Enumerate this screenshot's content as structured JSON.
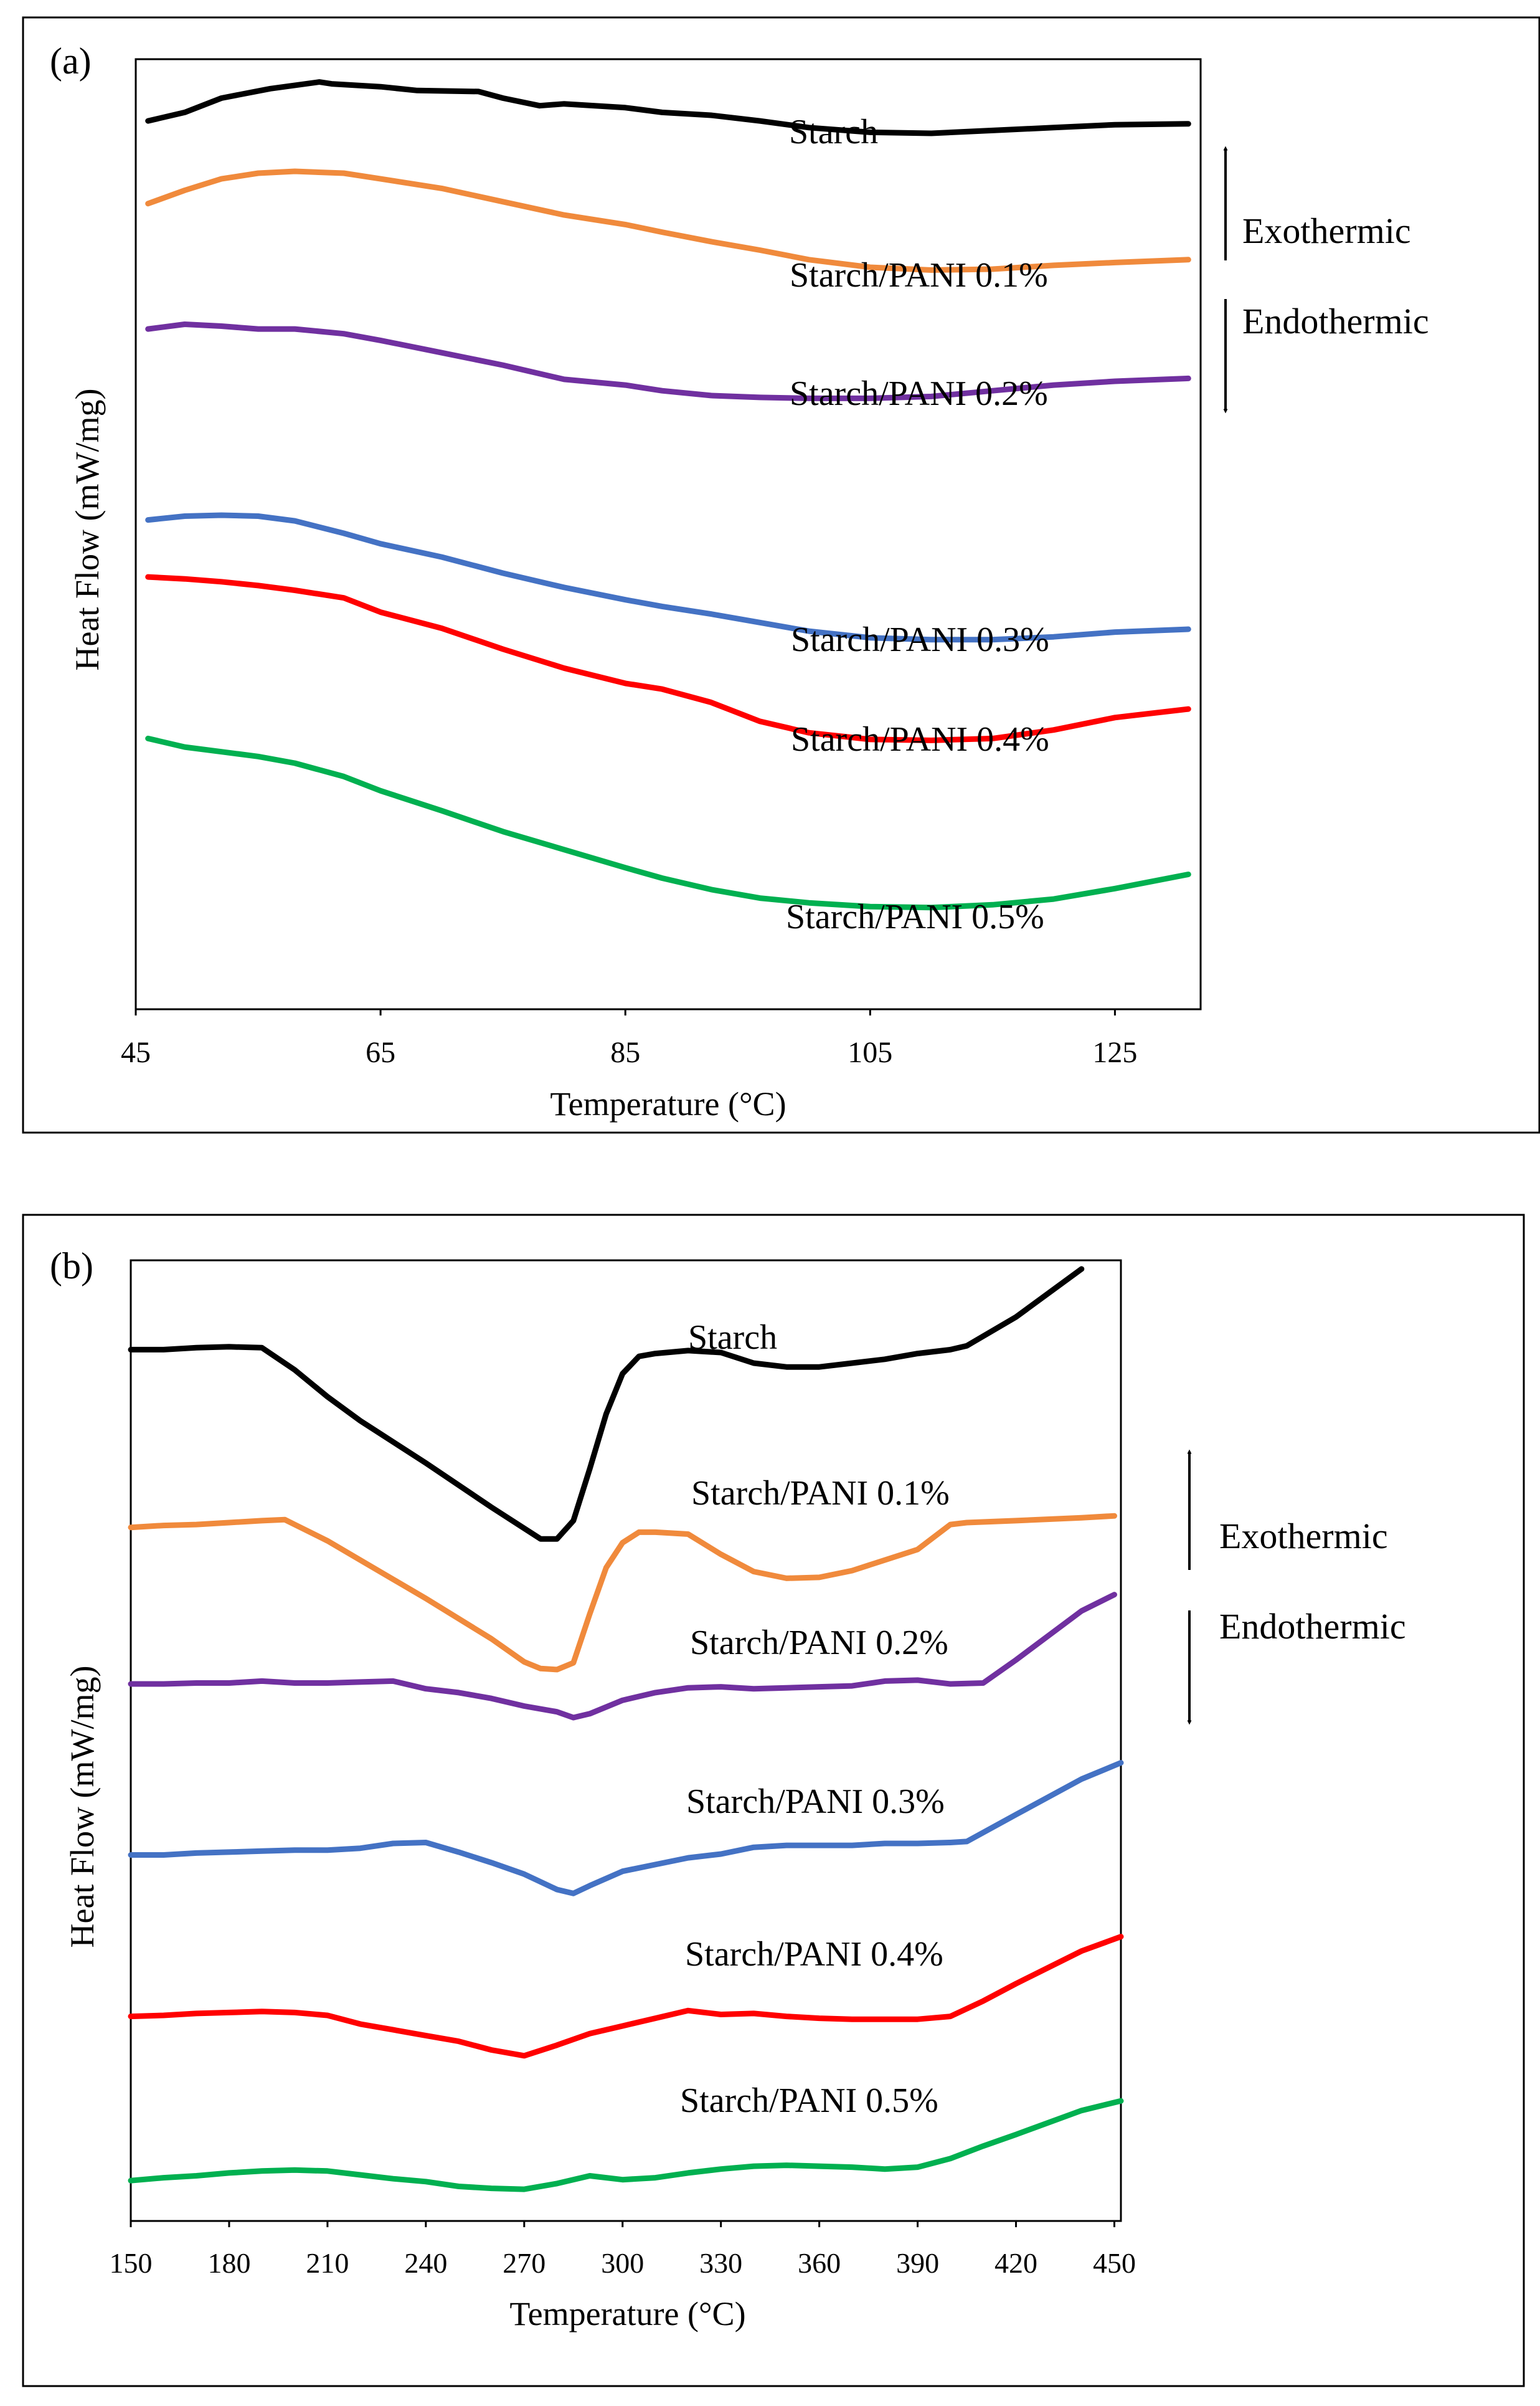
{
  "chart_data": [
    {
      "type": "line",
      "panel_label": "(a)",
      "xlabel": "Temperature (°C)",
      "ylabel": "Heat Flow (mW/mg)",
      "xlim": [
        45,
        132
      ],
      "ylim": [
        0,
        100
      ],
      "x_ticks": [
        "45",
        "65",
        "85",
        "105",
        "125"
      ],
      "x_tick_values": [
        45,
        65,
        85,
        105,
        125
      ],
      "legend": {
        "exo_label": "Exothermic",
        "endo_label": "Endothermic",
        "placement": "right"
      },
      "series": [
        {
          "name": "Starch",
          "color": "#000000",
          "x": [
            46,
            49,
            52,
            56,
            60,
            61,
            65,
            68,
            73,
            75,
            78,
            80,
            85,
            88,
            92,
            96,
            100,
            105,
            110,
            115,
            120,
            125,
            131
          ],
          "y": [
            93.5,
            94.4,
            95.9,
            96.9,
            97.6,
            97.4,
            97.1,
            96.7,
            96.6,
            95.9,
            95.1,
            95.3,
            94.9,
            94.4,
            94.1,
            93.5,
            92.8,
            92.3,
            92.2,
            92.5,
            92.8,
            93.1,
            93.2
          ]
        },
        {
          "name": "Starch/PANI 0.1%",
          "color": "#f08a3c",
          "x": [
            46,
            49,
            52,
            55,
            58,
            62,
            65,
            70,
            75,
            80,
            85,
            88,
            92,
            96,
            100,
            105,
            110,
            115,
            120,
            125,
            131
          ],
          "y": [
            84.8,
            86.2,
            87.4,
            88.0,
            88.2,
            88.0,
            87.4,
            86.4,
            85.0,
            83.6,
            82.6,
            81.8,
            80.8,
            79.9,
            78.9,
            78.1,
            77.8,
            77.9,
            78.3,
            78.6,
            78.9
          ]
        },
        {
          "name": "Starch/PANI 0.2%",
          "color": "#7030a0",
          "x": [
            46,
            49,
            52,
            55,
            58,
            62,
            65,
            70,
            75,
            80,
            85,
            88,
            92,
            96,
            100,
            105,
            110,
            115,
            120,
            125,
            131
          ],
          "y": [
            71.6,
            72.1,
            71.9,
            71.6,
            71.6,
            71.1,
            70.4,
            69.1,
            67.8,
            66.3,
            65.7,
            65.1,
            64.6,
            64.4,
            64.3,
            64.3,
            64.5,
            65.1,
            65.7,
            66.1,
            66.4
          ]
        },
        {
          "name": "Starch/PANI 0.3%",
          "color": "#4472c4",
          "x": [
            46,
            49,
            52,
            55,
            58,
            62,
            65,
            70,
            75,
            80,
            85,
            88,
            92,
            96,
            100,
            105,
            110,
            115,
            120,
            125,
            131
          ],
          "y": [
            51.5,
            51.9,
            52.0,
            51.9,
            51.4,
            50.1,
            49.0,
            47.6,
            45.9,
            44.4,
            43.1,
            42.4,
            41.6,
            40.7,
            39.8,
            39.1,
            38.9,
            38.9,
            39.2,
            39.7,
            40.0
          ]
        },
        {
          "name": "Starch/PANI 0.4%",
          "color": "#ff0000",
          "x": [
            46,
            49,
            52,
            55,
            58,
            62,
            65,
            70,
            75,
            80,
            85,
            88,
            92,
            96,
            100,
            105,
            110,
            115,
            120,
            125,
            131
          ],
          "y": [
            45.5,
            45.3,
            45.0,
            44.6,
            44.1,
            43.3,
            41.8,
            40.1,
            37.9,
            35.9,
            34.3,
            33.7,
            32.3,
            30.3,
            29.1,
            28.4,
            28.3,
            28.5,
            29.4,
            30.7,
            31.6
          ]
        },
        {
          "name": "Starch/PANI 0.5%",
          "color": "#00b050",
          "x": [
            46,
            49,
            52,
            55,
            58,
            62,
            65,
            70,
            75,
            80,
            85,
            88,
            92,
            96,
            100,
            105,
            110,
            115,
            120,
            125,
            131
          ],
          "y": [
            28.5,
            27.6,
            27.1,
            26.6,
            25.9,
            24.5,
            23.0,
            20.9,
            18.7,
            16.8,
            14.9,
            13.8,
            12.6,
            11.7,
            11.2,
            10.8,
            10.7,
            11.0,
            11.6,
            12.7,
            14.2
          ]
        }
      ]
    },
    {
      "type": "line",
      "panel_label": "(b)",
      "xlabel": "Temperature (°C)",
      "ylabel": "Heat Flow (mW/mg)",
      "xlim": [
        150,
        452
      ],
      "ylim": [
        0,
        100
      ],
      "x_ticks": [
        "150",
        "180",
        "210",
        "240",
        "270",
        "300",
        "330",
        "360",
        "390",
        "420",
        "450"
      ],
      "x_tick_values": [
        150,
        180,
        210,
        240,
        270,
        300,
        330,
        360,
        390,
        420,
        450
      ],
      "legend": {
        "exo_label": "Exothermic",
        "endo_label": "Endothermic",
        "placement": "right"
      },
      "series": [
        {
          "name": "Starch",
          "color": "#000000",
          "x": [
            150,
            160,
            170,
            180,
            190,
            200,
            210,
            220,
            240,
            260,
            275,
            280,
            285,
            290,
            295,
            300,
            305,
            310,
            320,
            330,
            340,
            350,
            360,
            370,
            380,
            390,
            400,
            405,
            420,
            440
          ],
          "y": [
            90.7,
            90.7,
            90.9,
            91.0,
            90.9,
            88.6,
            85.8,
            83.3,
            78.9,
            74.3,
            71.0,
            71.0,
            72.9,
            78.3,
            84.0,
            88.2,
            90.0,
            90.3,
            90.6,
            90.4,
            89.3,
            88.9,
            88.9,
            89.3,
            89.7,
            90.3,
            90.7,
            91.1,
            94.1,
            99.1
          ]
        },
        {
          "name": "Starch/PANI 0.1%",
          "color": "#f08a3c",
          "x": [
            150,
            160,
            170,
            180,
            190,
            197,
            200,
            210,
            220,
            240,
            260,
            270,
            275,
            280,
            285,
            290,
            295,
            300,
            305,
            310,
            320,
            330,
            340,
            350,
            360,
            370,
            380,
            390,
            400,
            405,
            420,
            440,
            450
          ],
          "y": [
            72.2,
            72.4,
            72.5,
            72.7,
            72.9,
            73.0,
            72.5,
            70.8,
            68.8,
            64.8,
            60.6,
            58.2,
            57.5,
            57.4,
            58.1,
            63.2,
            68.0,
            70.6,
            71.7,
            71.7,
            71.5,
            69.4,
            67.6,
            66.9,
            67.0,
            67.7,
            68.8,
            69.9,
            72.5,
            72.7,
            72.9,
            73.2,
            73.4
          ]
        },
        {
          "name": "Starch/PANI 0.2%",
          "color": "#7030a0",
          "x": [
            150,
            160,
            170,
            180,
            190,
            200,
            210,
            220,
            230,
            240,
            250,
            260,
            270,
            280,
            285,
            290,
            300,
            310,
            320,
            330,
            340,
            350,
            360,
            370,
            380,
            390,
            400,
            410,
            420,
            440,
            450
          ],
          "y": [
            55.9,
            55.9,
            56.0,
            56.0,
            56.2,
            56.0,
            56.0,
            56.1,
            56.2,
            55.4,
            55.0,
            54.4,
            53.6,
            53.0,
            52.4,
            52.8,
            54.2,
            55.0,
            55.5,
            55.6,
            55.4,
            55.5,
            55.6,
            55.7,
            56.2,
            56.3,
            55.9,
            56.0,
            58.4,
            63.5,
            65.2
          ]
        },
        {
          "name": "Starch/PANI 0.3%",
          "color": "#4472c4",
          "x": [
            150,
            160,
            170,
            180,
            190,
            200,
            210,
            220,
            230,
            240,
            250,
            260,
            270,
            280,
            285,
            290,
            300,
            310,
            320,
            330,
            340,
            350,
            360,
            370,
            380,
            390,
            400,
            405,
            420,
            440,
            452
          ],
          "y": [
            38.1,
            38.1,
            38.3,
            38.4,
            38.5,
            38.6,
            38.6,
            38.8,
            39.3,
            39.4,
            38.4,
            37.3,
            36.1,
            34.5,
            34.1,
            34.9,
            36.4,
            37.1,
            37.8,
            38.2,
            38.9,
            39.1,
            39.1,
            39.1,
            39.3,
            39.3,
            39.4,
            39.5,
            42.3,
            46.0,
            47.7
          ]
        },
        {
          "name": "Starch/PANI 0.4%",
          "color": "#ff0000",
          "x": [
            150,
            160,
            170,
            180,
            190,
            200,
            210,
            220,
            230,
            240,
            250,
            260,
            270,
            280,
            290,
            300,
            310,
            320,
            330,
            340,
            350,
            360,
            370,
            380,
            390,
            400,
            410,
            420,
            440,
            452
          ],
          "y": [
            21.3,
            21.4,
            21.6,
            21.7,
            21.8,
            21.7,
            21.4,
            20.5,
            19.9,
            19.3,
            18.7,
            17.8,
            17.2,
            18.3,
            19.5,
            20.3,
            21.1,
            21.9,
            21.5,
            21.6,
            21.3,
            21.1,
            21.0,
            21.0,
            21.0,
            21.3,
            22.9,
            24.7,
            28.1,
            29.6
          ]
        },
        {
          "name": "Starch/PANI 0.5%",
          "color": "#00b050",
          "x": [
            150,
            160,
            170,
            180,
            190,
            200,
            210,
            220,
            230,
            240,
            250,
            260,
            270,
            280,
            290,
            300,
            310,
            320,
            330,
            340,
            350,
            360,
            370,
            380,
            390,
            400,
            410,
            420,
            440,
            452
          ],
          "y": [
            4.2,
            4.5,
            4.7,
            5.0,
            5.2,
            5.3,
            5.2,
            4.8,
            4.4,
            4.1,
            3.6,
            3.4,
            3.3,
            3.9,
            4.7,
            4.3,
            4.5,
            5.0,
            5.4,
            5.7,
            5.8,
            5.7,
            5.6,
            5.4,
            5.6,
            6.5,
            7.8,
            9.0,
            11.5,
            12.5
          ]
        }
      ]
    }
  ]
}
